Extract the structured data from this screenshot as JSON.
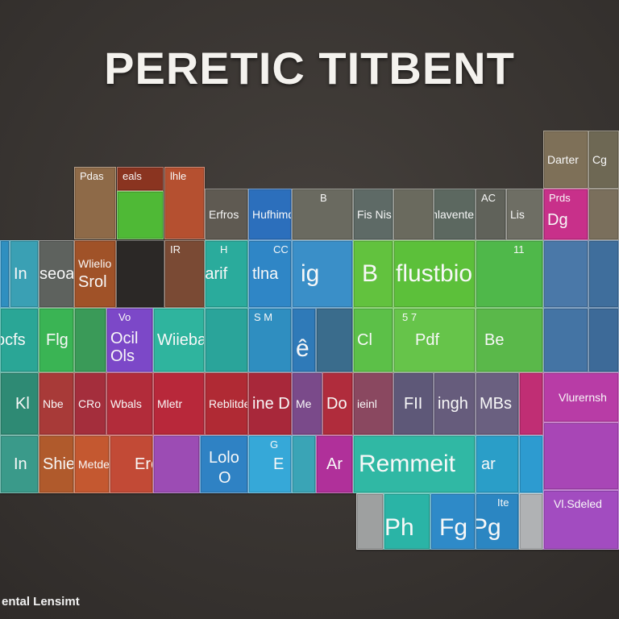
{
  "title": "PERETIC TITBENT",
  "footer": "ental Lensimt",
  "tiles": {
    "pdas": "Pdas",
    "eals": "eals",
    "lhle": "lhle",
    "darter": "Darter",
    "cg": "Cg",
    "prds": "Prds",
    "dg": "Dg",
    "b_top": "B",
    "ac": "AC",
    "erfros": "Erfros",
    "hufhimdoang": "Hufhimdoang",
    "fis_nis": "Fis  Nis",
    "dnlavente": "Dnlavente",
    "lis": "Lis",
    "wlielio": "Wlielio",
    "srol": "Srol",
    "ir": "IR",
    "h_row3": "H",
    "orbarif": "Orbarif",
    "tina": "tlna",
    "ig": "ig",
    "c_small": "CC",
    "b_big": "B",
    "flustbio": "flustbio",
    "n_top": "11",
    "in": "In",
    "oseoa": "seoa",
    "ocfs": "ocfs",
    "fig": "Flg",
    "vo": "Vo",
    "ocil": "Ocil",
    "ols": "Ols",
    "wiiebas": "Wiiebas",
    "s_m": "S  M",
    "e_big": "ê",
    "cl": "Cl",
    "pdf": "Pdf",
    "be": "Be",
    "s7": "5  7",
    "kl": "Kl",
    "nbe": "Nbe",
    "cro": "CRo",
    "wbals": "Wbals",
    "mletr": "Mletr",
    "rebltde": "Reblitde",
    "ine_d": "ine D",
    "me": "Me",
    "do": "Do",
    "ieinl": "ieinl",
    "fii": "FII",
    "ingh": "ingh",
    "mbs": "MBs",
    "vlurernsh": "Vlurernsh",
    "in2": "In",
    "shie": "Shie",
    "metdeen": "Metdeen",
    "eronl": "Eronl",
    "lolo": "Lolo",
    "o_big": "O",
    "e_tile": "E",
    "g_small": "G",
    "ar": "Ar",
    "remmeit": "Remmeit",
    "ar2": "ar",
    "ph": "Ph",
    "fg": "Fg",
    "pg": "Pg",
    "lte": "Ite",
    "vlsdeled": "Vl.Sdeled"
  },
  "colors": {
    "brown": "#8a6a4a",
    "orange": "#b2542a",
    "green": "#5bbf3a",
    "teal": "#2fae9e",
    "blue": "#2f7fc0",
    "sky": "#3a9bcf",
    "purple": "#7b4cc4",
    "magenta": "#b03a9a",
    "red": "#b8283c",
    "gray": "#6e6e6e",
    "olive": "#6f6a52",
    "slate": "#5e6f86",
    "pink": "#c23a8c",
    "violet": "#a046c0"
  }
}
